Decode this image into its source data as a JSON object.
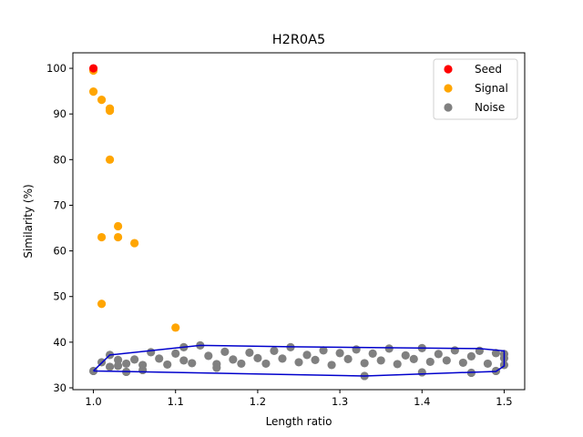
{
  "chart_data": {
    "type": "scatter",
    "title": "H2R0A5",
    "xlabel": "Length ratio",
    "ylabel": "Similarity (%)",
    "xlim": [
      0.975,
      1.525
    ],
    "ylim": [
      29.6,
      103.4
    ],
    "xticks": [
      1.0,
      1.1,
      1.2,
      1.3,
      1.4,
      1.5
    ],
    "xtick_labels": [
      "1.0",
      "1.1",
      "1.2",
      "1.3",
      "1.4",
      "1.5"
    ],
    "yticks": [
      30,
      40,
      50,
      60,
      70,
      80,
      90,
      100
    ],
    "ytick_labels": [
      "30",
      "40",
      "50",
      "60",
      "70",
      "80",
      "90",
      "100"
    ],
    "legend_position": "top-right",
    "grid": false,
    "series": [
      {
        "name": "Seed",
        "color": "#ff0000",
        "points": [
          [
            1.0,
            100.0
          ]
        ]
      },
      {
        "name": "Signal",
        "color": "#ffa500",
        "points": [
          [
            1.0,
            99.5
          ],
          [
            1.0,
            94.9
          ],
          [
            1.01,
            93.1
          ],
          [
            1.02,
            91.2
          ],
          [
            1.02,
            90.7
          ],
          [
            1.02,
            80.0
          ],
          [
            1.03,
            65.4
          ],
          [
            1.01,
            63.0
          ],
          [
            1.03,
            63.0
          ],
          [
            1.05,
            61.7
          ],
          [
            1.01,
            48.4
          ],
          [
            1.1,
            43.2
          ]
        ]
      },
      {
        "name": "Noise",
        "color": "#808080",
        "points": [
          [
            1.0,
            33.7
          ],
          [
            1.01,
            35.6
          ],
          [
            1.02,
            34.6
          ],
          [
            1.02,
            37.2
          ],
          [
            1.03,
            34.8
          ],
          [
            1.03,
            36.1
          ],
          [
            1.04,
            35.3
          ],
          [
            1.04,
            33.5
          ],
          [
            1.05,
            36.2
          ],
          [
            1.06,
            35.0
          ],
          [
            1.06,
            33.9
          ],
          [
            1.07,
            37.8
          ],
          [
            1.08,
            36.4
          ],
          [
            1.09,
            35.1
          ],
          [
            1.1,
            37.5
          ],
          [
            1.11,
            36.0
          ],
          [
            1.11,
            38.9
          ],
          [
            1.12,
            35.4
          ],
          [
            1.13,
            39.3
          ],
          [
            1.14,
            37.0
          ],
          [
            1.15,
            35.2
          ],
          [
            1.15,
            34.4
          ],
          [
            1.16,
            37.9
          ],
          [
            1.17,
            36.2
          ],
          [
            1.18,
            35.3
          ],
          [
            1.19,
            37.7
          ],
          [
            1.2,
            36.5
          ],
          [
            1.21,
            35.3
          ],
          [
            1.22,
            38.1
          ],
          [
            1.23,
            36.4
          ],
          [
            1.24,
            38.9
          ],
          [
            1.25,
            35.6
          ],
          [
            1.26,
            37.2
          ],
          [
            1.27,
            36.1
          ],
          [
            1.28,
            38.2
          ],
          [
            1.29,
            35.0
          ],
          [
            1.3,
            37.6
          ],
          [
            1.31,
            36.3
          ],
          [
            1.32,
            38.4
          ],
          [
            1.33,
            32.6
          ],
          [
            1.33,
            35.4
          ],
          [
            1.34,
            37.5
          ],
          [
            1.35,
            36.0
          ],
          [
            1.36,
            38.6
          ],
          [
            1.37,
            35.2
          ],
          [
            1.38,
            37.1
          ],
          [
            1.39,
            36.3
          ],
          [
            1.4,
            38.7
          ],
          [
            1.4,
            33.4
          ],
          [
            1.41,
            35.7
          ],
          [
            1.42,
            37.4
          ],
          [
            1.43,
            36.0
          ],
          [
            1.44,
            38.2
          ],
          [
            1.45,
            35.5
          ],
          [
            1.46,
            36.9
          ],
          [
            1.46,
            33.3
          ],
          [
            1.47,
            38.1
          ],
          [
            1.48,
            35.3
          ],
          [
            1.49,
            37.6
          ],
          [
            1.49,
            33.7
          ],
          [
            1.5,
            35.0
          ],
          [
            1.5,
            36.5
          ],
          [
            1.5,
            37.4
          ]
        ]
      }
    ],
    "hull": {
      "color": "#0000cc",
      "points": [
        [
          1.0,
          33.7
        ],
        [
          1.02,
          37.2
        ],
        [
          1.13,
          39.3
        ],
        [
          1.24,
          39.0
        ],
        [
          1.47,
          38.6
        ],
        [
          1.5,
          38.1
        ],
        [
          1.5,
          34.8
        ],
        [
          1.49,
          33.6
        ],
        [
          1.33,
          32.6
        ],
        [
          1.0,
          33.7
        ]
      ]
    }
  }
}
